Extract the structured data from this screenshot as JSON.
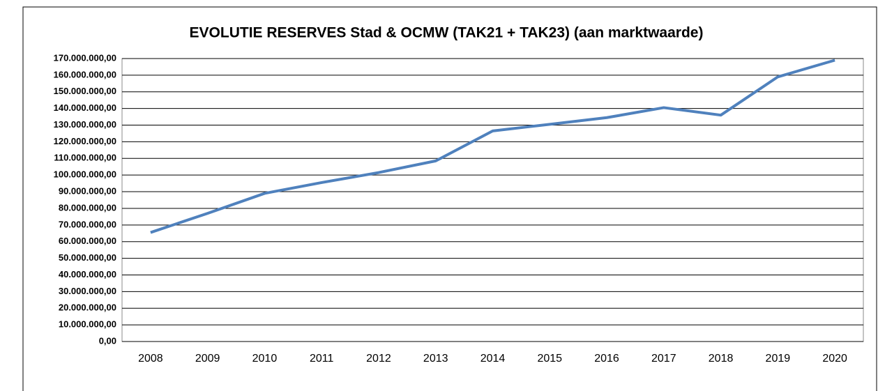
{
  "chart_data": {
    "type": "line",
    "title": "EVOLUTIE RESERVES Stad & OCMW  (TAK21 + TAK23) (aan marktwaarde)",
    "categories": [
      "2008",
      "2009",
      "2010",
      "2011",
      "2012",
      "2013",
      "2014",
      "2015",
      "2016",
      "2017",
      "2018",
      "2019",
      "2020"
    ],
    "series": [
      {
        "name": "Reserves",
        "color": "#4f81bd",
        "values": [
          65500000,
          77000000,
          89000000,
          95500000,
          101500000,
          108500000,
          126500000,
          130500000,
          134500000,
          140500000,
          136000000,
          159000000,
          169000000
        ]
      }
    ],
    "ylim": [
      0,
      170000000
    ],
    "yticks": [
      {
        "value": 0,
        "label": "0,00"
      },
      {
        "value": 10000000,
        "label": "10.000.000,00"
      },
      {
        "value": 20000000,
        "label": "20.000.000,00"
      },
      {
        "value": 30000000,
        "label": "30.000.000,00"
      },
      {
        "value": 40000000,
        "label": "40.000.000,00"
      },
      {
        "value": 50000000,
        "label": "50.000.000,00"
      },
      {
        "value": 60000000,
        "label": "60.000.000,00"
      },
      {
        "value": 70000000,
        "label": "70.000.000,00"
      },
      {
        "value": 80000000,
        "label": "80.000.000,00"
      },
      {
        "value": 90000000,
        "label": "90.000.000,00"
      },
      {
        "value": 100000000,
        "label": "100.000.000,00"
      },
      {
        "value": 110000000,
        "label": "110.000.000,00"
      },
      {
        "value": 120000000,
        "label": "120.000.000,00"
      },
      {
        "value": 130000000,
        "label": "130.000.000,00"
      },
      {
        "value": 140000000,
        "label": "140.000.000,00"
      },
      {
        "value": 150000000,
        "label": "150.000.000,00"
      },
      {
        "value": 160000000,
        "label": "160.000.000,00"
      },
      {
        "value": 170000000,
        "label": "170.000.000,00"
      }
    ],
    "grid": true
  }
}
